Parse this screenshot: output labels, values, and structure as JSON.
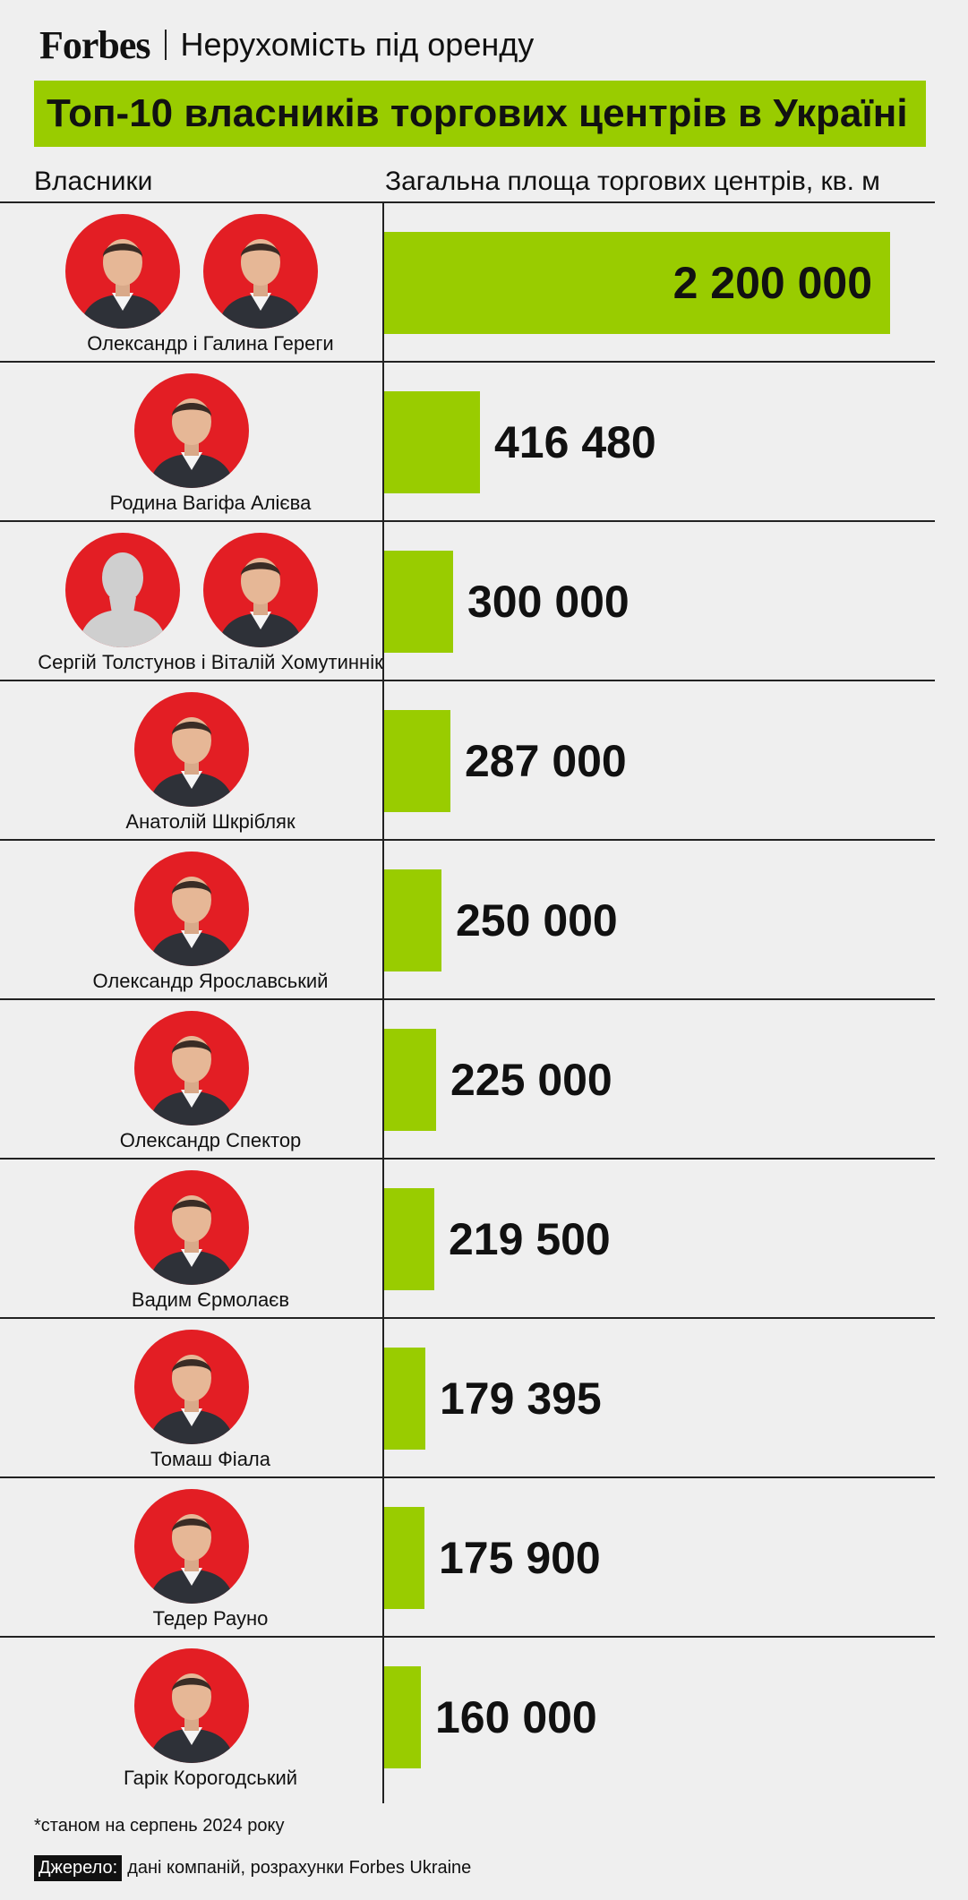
{
  "header": {
    "logo": "Forbes",
    "section": "Нерухомість під оренду"
  },
  "title": "Топ-10 власників торгових центрів в Україні",
  "columns": {
    "owners": "Власники",
    "area": "Загальна площа торгових центрів, кв. м"
  },
  "colors": {
    "bar": "#99cc00",
    "photo_background": "#e31e24",
    "background": "#efefef"
  },
  "chart_data": {
    "type": "bar",
    "orientation": "horizontal",
    "categories": [
      "Олександр і Галина Гереги",
      "Родина Вагіфа Алієва",
      "Сергій Толстунов і Віталій Хомутиннік",
      "Анатолій Шкрібляк",
      "Олександр Ярославський",
      "Олександр Спектор",
      "Вадим Єрмолаєв",
      "Томаш Фіала",
      "Тедер Рауно",
      "Гарік Корогодський"
    ],
    "values": [
      2200000,
      416480,
      300000,
      287000,
      250000,
      225000,
      219500,
      179395,
      175900,
      160000
    ],
    "value_labels": [
      "2 200 000",
      "416 480",
      "300 000",
      "287 000",
      "250 000",
      "225 000",
      "219 500",
      "179 395",
      "175 900",
      "160 000"
    ],
    "photos_per_row": [
      2,
      1,
      2,
      1,
      1,
      1,
      1,
      1,
      1,
      1
    ],
    "photo_icons": [
      [
        "person-photo-icon",
        "person-photo-icon"
      ],
      [
        "person-photo-icon"
      ],
      [
        "placeholder-silhouette-icon",
        "person-photo-icon"
      ],
      [
        "person-photo-icon"
      ],
      [
        "person-photo-icon"
      ],
      [
        "person-photo-icon"
      ],
      [
        "person-photo-icon"
      ],
      [
        "person-photo-icon"
      ],
      [
        "person-photo-icon"
      ],
      [
        "person-photo-icon"
      ]
    ],
    "xlim": [
      0,
      2200000
    ],
    "grid": false,
    "legend": "none"
  },
  "footnote": "*станом на серпень 2024 року",
  "source": {
    "label": "Джерело:",
    "text": "дані компаній, розрахунки Forbes Ukraine"
  }
}
